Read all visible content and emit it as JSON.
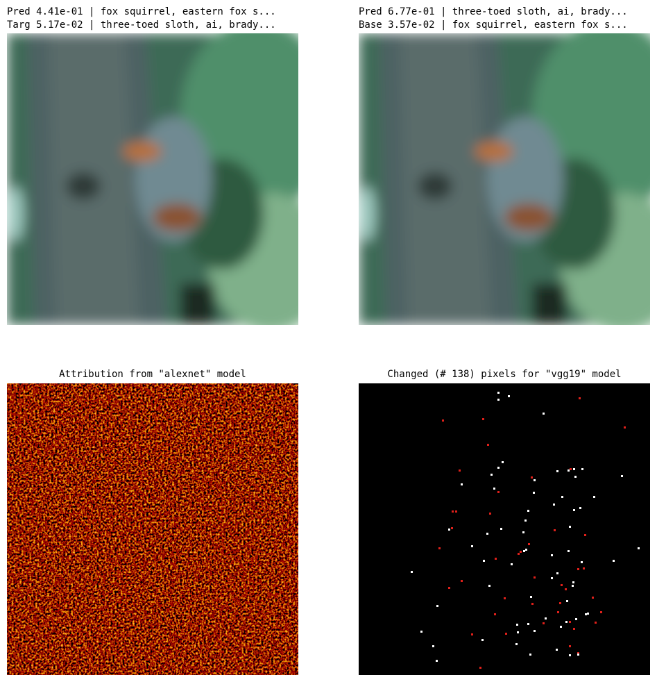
{
  "panels": [
    {
      "title": [
        "Pred 4.41e-01 | fox squirrel, eastern fox s...",
        "Targ 5.17e-02 | three-toed sloth, ai, brady..."
      ]
    },
    {
      "title": [
        "Pred 6.77e-01 | three-toed sloth, ai, brady...",
        "Base 3.57e-02 | fox squirrel, eastern fox s..."
      ]
    },
    {
      "title": [
        "Attribution from \"alexnet\" model"
      ]
    },
    {
      "title": [
        "Changed (# 138) pixels for \"vgg19\" model"
      ]
    }
  ]
}
